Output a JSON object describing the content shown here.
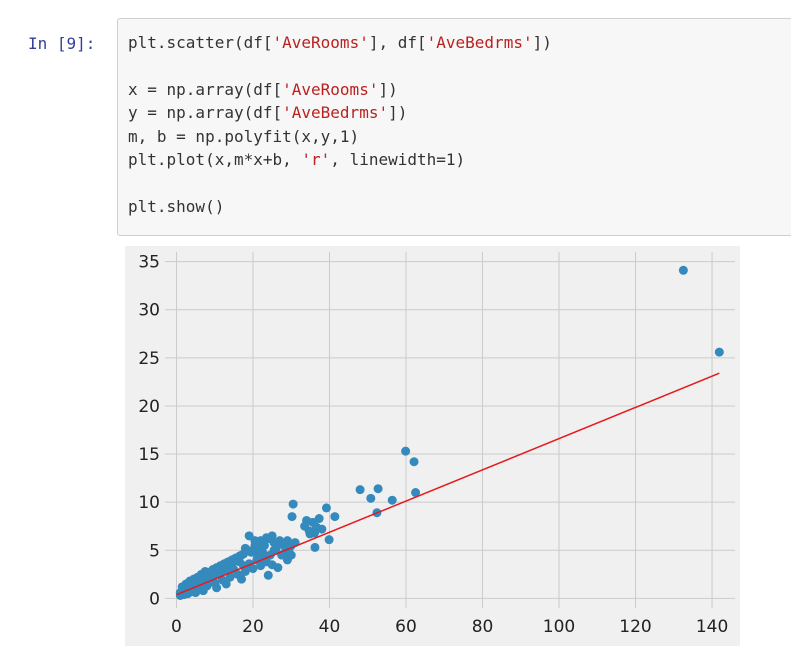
{
  "cell": {
    "prompt": "In [9]:",
    "code_lines": [
      [
        {
          "t": "plt.scatter(df["
        },
        {
          "t": "'AveRooms'",
          "s": true
        },
        {
          "t": "], df["
        },
        {
          "t": "'AveBedrms'",
          "s": true
        },
        {
          "t": "])"
        }
      ],
      [],
      [
        {
          "t": "x = np.array(df["
        },
        {
          "t": "'AveRooms'",
          "s": true
        },
        {
          "t": "])"
        }
      ],
      [
        {
          "t": "y = np.array(df["
        },
        {
          "t": "'AveBedrms'",
          "s": true
        },
        {
          "t": "])"
        }
      ],
      [
        {
          "t": "m, b = np.polyfit(x,y,1)"
        }
      ],
      [
        {
          "t": "plt.plot(x,m*x+b, "
        },
        {
          "t": "'r'",
          "s": true
        },
        {
          "t": ", linewidth=1)"
        }
      ],
      [],
      [
        {
          "t": "plt.show()"
        }
      ]
    ]
  },
  "chart_data": {
    "type": "scatter",
    "xlim": [
      -3,
      146
    ],
    "ylim": [
      -1,
      36
    ],
    "xticks": [
      0,
      20,
      40,
      60,
      80,
      100,
      120,
      140
    ],
    "yticks": [
      0,
      5,
      10,
      15,
      20,
      25,
      30,
      35
    ],
    "grid": true,
    "point_color": "#348abd",
    "fit_line_color": "#e41a1c",
    "background_color": "#f0f0f0",
    "grid_color": "#cbcbcb",
    "points": [
      [
        132.5,
        34.1
      ],
      [
        141.9,
        25.6
      ],
      [
        59.9,
        15.3
      ],
      [
        62.1,
        14.2
      ],
      [
        48.0,
        11.3
      ],
      [
        52.7,
        11.4
      ],
      [
        50.8,
        10.4
      ],
      [
        56.4,
        10.2
      ],
      [
        62.5,
        11.0
      ],
      [
        52.4,
        8.9
      ],
      [
        30.5,
        9.8
      ],
      [
        30.2,
        8.5
      ],
      [
        39.2,
        9.4
      ],
      [
        41.4,
        8.5
      ],
      [
        39.9,
        6.1
      ],
      [
        37.3,
        8.3
      ],
      [
        35.6,
        7.9
      ],
      [
        34.0,
        8.1
      ],
      [
        36.6,
        7.4
      ],
      [
        36.1,
        6.8
      ],
      [
        34.9,
        6.7
      ],
      [
        34.7,
        7.0
      ],
      [
        36.2,
        5.3
      ],
      [
        33.5,
        7.5
      ],
      [
        38.0,
        7.2
      ],
      [
        29.0,
        6.0
      ],
      [
        28.0,
        5.5
      ],
      [
        27.0,
        6.0
      ],
      [
        26.0,
        5.0
      ],
      [
        25.5,
        5.8
      ],
      [
        24.0,
        6.2
      ],
      [
        23.0,
        5.5
      ],
      [
        22.5,
        4.8
      ],
      [
        21.5,
        5.2
      ],
      [
        20.5,
        5.5
      ],
      [
        19.0,
        6.5
      ],
      [
        18.5,
        5.0
      ],
      [
        17.0,
        4.5
      ],
      [
        16.0,
        4.2
      ],
      [
        15.0,
        3.8
      ],
      [
        14.0,
        3.5
      ],
      [
        13.0,
        3.0
      ],
      [
        12.0,
        2.8
      ],
      [
        11.0,
        2.6
      ],
      [
        10.0,
        2.4
      ],
      [
        9.0,
        2.2
      ],
      [
        8.0,
        2.0
      ],
      [
        7.0,
        1.8
      ],
      [
        6.0,
        1.6
      ],
      [
        5.0,
        1.4
      ],
      [
        4.0,
        1.2
      ],
      [
        3.0,
        1.0
      ],
      [
        2.0,
        0.8
      ],
      [
        1.0,
        0.6
      ],
      [
        1.5,
        1.2
      ],
      [
        2.5,
        1.5
      ],
      [
        3.5,
        1.8
      ],
      [
        4.5,
        2.0
      ],
      [
        5.5,
        2.2
      ],
      [
        6.5,
        2.5
      ],
      [
        7.5,
        2.8
      ],
      [
        8.5,
        2.6
      ],
      [
        9.5,
        3.0
      ],
      [
        10.5,
        3.2
      ],
      [
        11.5,
        3.4
      ],
      [
        12.5,
        3.6
      ],
      [
        13.5,
        3.8
      ],
      [
        14.5,
        4.0
      ],
      [
        15.5,
        4.2
      ],
      [
        16.5,
        4.4
      ],
      [
        17.5,
        4.6
      ],
      [
        18.0,
        5.2
      ],
      [
        19.5,
        4.8
      ],
      [
        20.0,
        5.0
      ],
      [
        21.0,
        4.6
      ],
      [
        22.0,
        4.2
      ],
      [
        23.5,
        3.8
      ],
      [
        24.5,
        4.5
      ],
      [
        25.0,
        3.5
      ],
      [
        26.5,
        3.2
      ],
      [
        27.5,
        4.5
      ],
      [
        28.5,
        4.8
      ],
      [
        29.5,
        5.2
      ],
      [
        30.0,
        5.5
      ],
      [
        4.0,
        0.7
      ],
      [
        6.0,
        1.0
      ],
      [
        8.0,
        1.3
      ],
      [
        10.0,
        1.6
      ],
      [
        12.0,
        1.9
      ],
      [
        14.0,
        2.2
      ],
      [
        16.0,
        2.5
      ],
      [
        18.0,
        2.8
      ],
      [
        20.0,
        3.1
      ],
      [
        22.0,
        3.4
      ],
      [
        24.0,
        2.4
      ],
      [
        17.0,
        2.0
      ],
      [
        10.5,
        1.1
      ],
      [
        13.0,
        1.5
      ],
      [
        7.0,
        0.8
      ],
      [
        5.0,
        0.6
      ],
      [
        3.0,
        0.5
      ],
      [
        2.0,
        0.4
      ],
      [
        1.0,
        0.3
      ],
      [
        15.0,
        3.0
      ],
      [
        19.0,
        3.6
      ],
      [
        21.0,
        4.0
      ],
      [
        23.0,
        4.4
      ],
      [
        25.5,
        5.0
      ],
      [
        26.5,
        5.6
      ],
      [
        27.5,
        5.8
      ],
      [
        28.5,
        5.3
      ],
      [
        31.0,
        5.8
      ],
      [
        29.0,
        4.0
      ],
      [
        30.0,
        4.5
      ],
      [
        22.0,
        6.0
      ],
      [
        23.5,
        6.3
      ],
      [
        20.5,
        6.0
      ],
      [
        25.0,
        6.5
      ],
      [
        17.5,
        3.4
      ],
      [
        16.5,
        3.8
      ]
    ],
    "fit_line": {
      "x": [
        0,
        141.9
      ],
      "y": [
        0.38,
        23.4
      ]
    }
  }
}
